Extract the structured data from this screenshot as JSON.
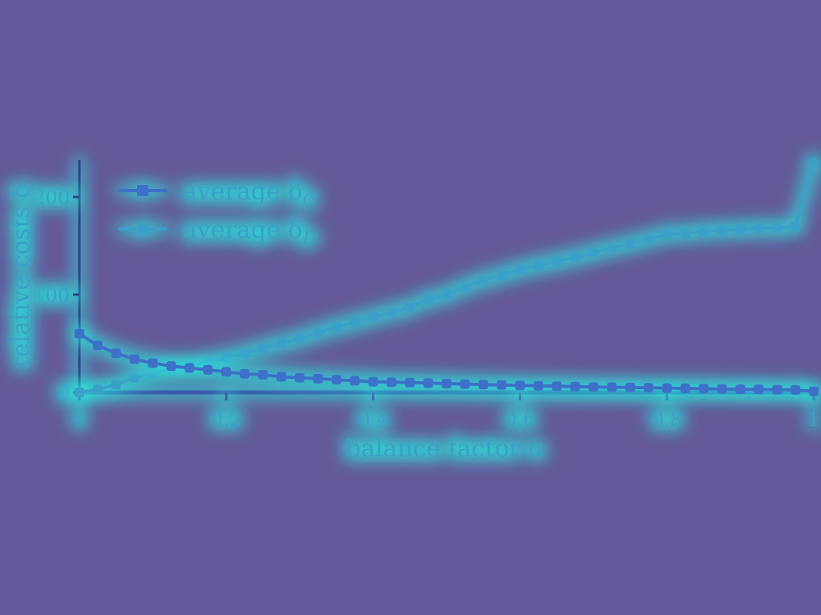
{
  "chart_data": {
    "type": "line",
    "title": "",
    "xlabel": "balance factor α",
    "ylabel": "relative costs δ",
    "xlim": [
      0,
      1
    ],
    "ylim": [
      0,
      240
    ],
    "xticks": [
      0,
      0.2,
      0.4,
      0.6,
      0.8,
      1
    ],
    "xtick_labels": [
      "0",
      "0.2",
      "0.4",
      "0.6",
      "0.8",
      "1"
    ],
    "yticks": [
      0,
      100,
      200
    ],
    "ytick_labels": [
      "0",
      "100",
      "200"
    ],
    "grid": false,
    "legend_position": "top-left",
    "x": [
      0,
      0.025,
      0.05,
      0.075,
      0.1,
      0.125,
      0.15,
      0.175,
      0.2,
      0.225,
      0.25,
      0.275,
      0.3,
      0.325,
      0.35,
      0.375,
      0.4,
      0.425,
      0.45,
      0.475,
      0.5,
      0.525,
      0.55,
      0.575,
      0.6,
      0.625,
      0.65,
      0.675,
      0.7,
      0.725,
      0.75,
      0.775,
      0.8,
      0.825,
      0.85,
      0.875,
      0.9,
      0.925,
      0.95,
      0.975,
      1
    ],
    "series": [
      {
        "name": "average δC",
        "color": "#3d6fc9",
        "values": [
          60,
          48,
          40,
          34,
          30,
          27,
          25,
          23,
          21,
          19,
          18,
          16,
          15,
          14,
          13,
          12,
          11,
          10.5,
          10,
          9.5,
          9,
          8.5,
          8,
          7.6,
          7.2,
          6.8,
          6.4,
          6,
          5.6,
          5.3,
          5,
          4.7,
          4.4,
          4.1,
          3.8,
          3.5,
          3.2,
          3,
          2.8,
          2.5,
          1
        ]
      },
      {
        "name": "average δD",
        "color": "#3aa0c8",
        "values": [
          0,
          3,
          8,
          15,
          20,
          24,
          27,
          31,
          35,
          40,
          45,
          50,
          55,
          61,
          67,
          72,
          77,
          82,
          87,
          95,
          100,
          108,
          115,
          120,
          126,
          130,
          134,
          138,
          143,
          148,
          152,
          157,
          162,
          163,
          165,
          166,
          167,
          168,
          168,
          170,
          235
        ]
      }
    ]
  },
  "legend": {
    "items": [
      {
        "prefix": "average δ",
        "sub": "C",
        "color": "#3d6fc9"
      },
      {
        "prefix": "average δ",
        "sub": "D",
        "color": "#3aa0c8"
      }
    ]
  }
}
